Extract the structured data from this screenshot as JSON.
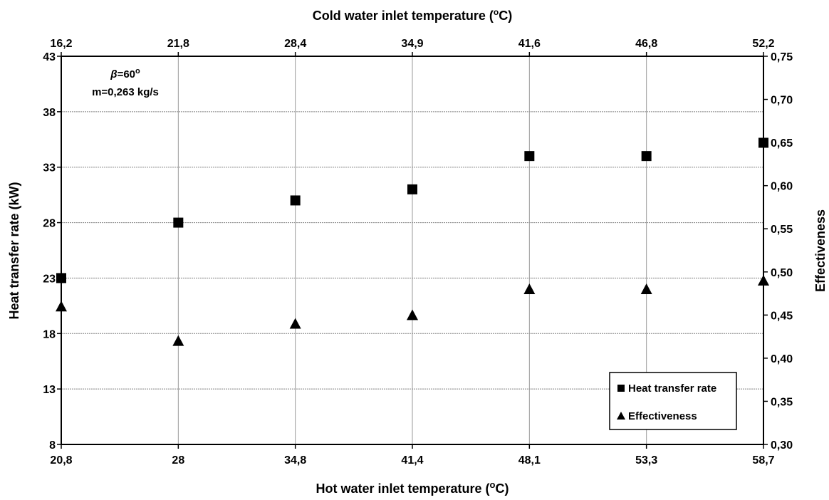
{
  "chart_data": {
    "type": "scatter",
    "title": "",
    "xlabel_bottom_prefix": "Hot water inlet temperature (",
    "xlabel_top_prefix": "Cold water inlet temperature (",
    "unit_degree": "o",
    "unit_c": "C)",
    "ylabel_left": "Heat transfer rate (kW)",
    "ylabel_right": "Effectiveness",
    "x_bottom_ticks": [
      "20,8",
      "28",
      "34,8",
      "41,4",
      "48,1",
      "53,3",
      "58,7"
    ],
    "x_top_ticks": [
      "16,2",
      "21,8",
      "28,4",
      "34,9",
      "41,6",
      "46,8",
      "52,2"
    ],
    "y_left": {
      "min": 8,
      "max": 43,
      "ticks": [
        8,
        13,
        18,
        23,
        28,
        33,
        38,
        43
      ]
    },
    "y_right": {
      "min": 0.3,
      "max": 0.75,
      "ticks": [
        "0,30",
        "0,35",
        "0,40",
        "0,45",
        "0,50",
        "0,55",
        "0,60",
        "0,65",
        "0,70",
        "0,75"
      ]
    },
    "annotation": {
      "beta_symbol": "β",
      "beta_value": "=60",
      "beta_degree": "o",
      "mass_flow": "m=0,263 kg/s"
    },
    "legend_position": "bottom-right",
    "grid": true,
    "series": [
      {
        "name": "Heat transfer rate",
        "axis": "left",
        "marker": "square",
        "values": [
          23,
          28,
          30,
          31,
          34,
          34,
          35.2
        ]
      },
      {
        "name": "Effectiveness",
        "axis": "right",
        "marker": "triangle",
        "values": [
          0.46,
          0.42,
          0.44,
          0.45,
          0.48,
          0.48,
          0.49
        ]
      }
    ]
  }
}
